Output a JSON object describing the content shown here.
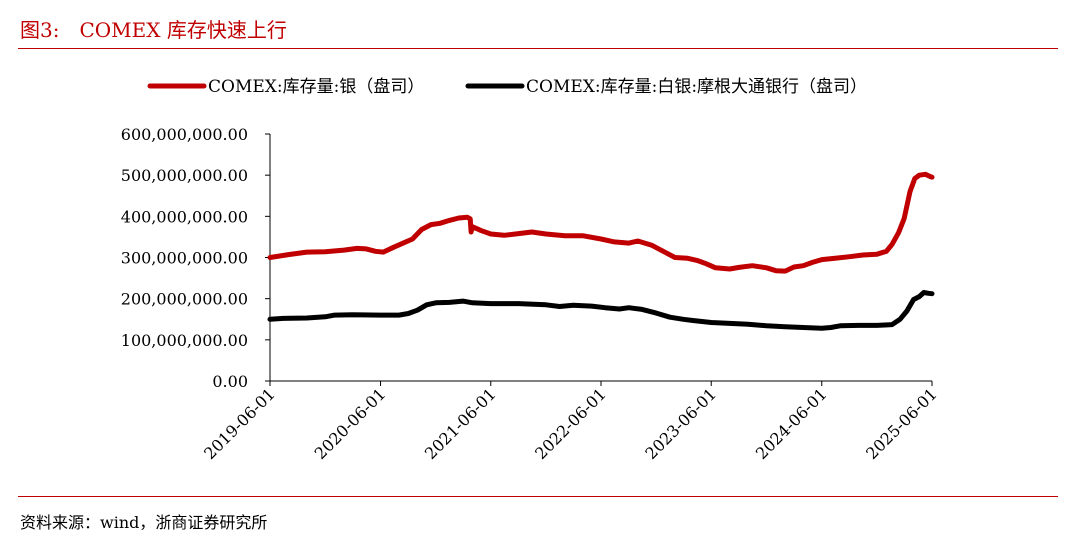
{
  "figure": {
    "title": "图3:　COMEX 库存快速上行",
    "source": "资料来源：wind，浙商证券研究所"
  },
  "chart_data": {
    "type": "line",
    "y_ticks": [
      "0.00",
      "100,000,000.00",
      "200,000,000.00",
      "300,000,000.00",
      "400,000,000.00",
      "500,000,000.00",
      "600,000,000.00"
    ],
    "x_ticks": [
      "2019-06-01",
      "2020-06-01",
      "2021-06-01",
      "2022-06-01",
      "2023-06-01",
      "2024-06-01",
      "2025-06-01"
    ],
    "x_range": [
      "2019-06-01",
      "2025-06-01"
    ],
    "ylim": [
      0,
      600000000
    ],
    "legend_position": "top",
    "grid": false,
    "series": [
      {
        "name": "COMEX:库存量:银（盘司）",
        "color": "#c00000",
        "points": [
          [
            "2019-06-01",
            300000000
          ],
          [
            "2019-08-01",
            307000000
          ],
          [
            "2019-10-01",
            313000000
          ],
          [
            "2019-12-01",
            314000000
          ],
          [
            "2020-02-01",
            318000000
          ],
          [
            "2020-03-15",
            322000000
          ],
          [
            "2020-04-15",
            321000000
          ],
          [
            "2020-05-15",
            315000000
          ],
          [
            "2020-06-10",
            313000000
          ],
          [
            "2020-07-15",
            325000000
          ],
          [
            "2020-08-15",
            335000000
          ],
          [
            "2020-09-15",
            345000000
          ],
          [
            "2020-10-15",
            368000000
          ],
          [
            "2020-11-15",
            380000000
          ],
          [
            "2020-12-15",
            383000000
          ],
          [
            "2021-01-15",
            390000000
          ],
          [
            "2021-02-15",
            396000000
          ],
          [
            "2021-03-15",
            398000000
          ],
          [
            "2021-03-25",
            394000000
          ],
          [
            "2021-03-28",
            362000000
          ],
          [
            "2021-04-01",
            375000000
          ],
          [
            "2021-05-01",
            365000000
          ],
          [
            "2021-06-01",
            357000000
          ],
          [
            "2021-07-15",
            354000000
          ],
          [
            "2021-09-01",
            358000000
          ],
          [
            "2021-10-15",
            362000000
          ],
          [
            "2021-12-01",
            357000000
          ],
          [
            "2022-02-01",
            353000000
          ],
          [
            "2022-04-01",
            353000000
          ],
          [
            "2022-06-01",
            345000000
          ],
          [
            "2022-07-15",
            338000000
          ],
          [
            "2022-09-01",
            335000000
          ],
          [
            "2022-10-01",
            340000000
          ],
          [
            "2022-11-15",
            330000000
          ],
          [
            "2023-01-01",
            312000000
          ],
          [
            "2023-02-01",
            300000000
          ],
          [
            "2023-03-15",
            298000000
          ],
          [
            "2023-04-15",
            293000000
          ],
          [
            "2023-05-15",
            285000000
          ],
          [
            "2023-06-15",
            275000000
          ],
          [
            "2023-08-01",
            272000000
          ],
          [
            "2023-09-01",
            276000000
          ],
          [
            "2023-10-15",
            280000000
          ],
          [
            "2023-12-01",
            275000000
          ],
          [
            "2024-01-01",
            268000000
          ],
          [
            "2024-02-01",
            267000000
          ],
          [
            "2024-03-01",
            277000000
          ],
          [
            "2024-04-01",
            280000000
          ],
          [
            "2024-05-01",
            288000000
          ],
          [
            "2024-06-01",
            295000000
          ],
          [
            "2024-07-15",
            298000000
          ],
          [
            "2024-09-01",
            302000000
          ],
          [
            "2024-10-15",
            306000000
          ],
          [
            "2024-12-01",
            308000000
          ],
          [
            "2025-01-01",
            315000000
          ],
          [
            "2025-01-20",
            332000000
          ],
          [
            "2025-02-10",
            360000000
          ],
          [
            "2025-03-01",
            395000000
          ],
          [
            "2025-03-20",
            460000000
          ],
          [
            "2025-04-05",
            492000000
          ],
          [
            "2025-04-20",
            500000000
          ],
          [
            "2025-05-10",
            502000000
          ],
          [
            "2025-05-25",
            497000000
          ],
          [
            "2025-06-01",
            495000000
          ]
        ]
      },
      {
        "name": "COMEX:库存量:白银:摩根大通银行（盘司）",
        "color": "#000000",
        "points": [
          [
            "2019-06-01",
            150000000
          ],
          [
            "2019-07-15",
            152000000
          ],
          [
            "2019-10-01",
            153000000
          ],
          [
            "2019-12-01",
            156000000
          ],
          [
            "2020-01-01",
            160000000
          ],
          [
            "2020-03-01",
            161000000
          ],
          [
            "2020-06-01",
            160000000
          ],
          [
            "2020-08-01",
            160000000
          ],
          [
            "2020-09-01",
            164000000
          ],
          [
            "2020-10-01",
            172000000
          ],
          [
            "2020-11-01",
            185000000
          ],
          [
            "2020-12-01",
            190000000
          ],
          [
            "2021-01-15",
            191000000
          ],
          [
            "2021-03-01",
            194000000
          ],
          [
            "2021-04-01",
            190000000
          ],
          [
            "2021-06-01",
            188000000
          ],
          [
            "2021-09-01",
            188000000
          ],
          [
            "2021-12-01",
            185000000
          ],
          [
            "2022-01-15",
            181000000
          ],
          [
            "2022-03-01",
            184000000
          ],
          [
            "2022-05-01",
            182000000
          ],
          [
            "2022-06-15",
            178000000
          ],
          [
            "2022-08-01",
            175000000
          ],
          [
            "2022-09-01",
            178000000
          ],
          [
            "2022-10-15",
            174000000
          ],
          [
            "2022-12-01",
            165000000
          ],
          [
            "2023-01-15",
            155000000
          ],
          [
            "2023-03-01",
            150000000
          ],
          [
            "2023-04-01",
            147000000
          ],
          [
            "2023-06-01",
            142000000
          ],
          [
            "2023-08-01",
            140000000
          ],
          [
            "2023-10-01",
            138000000
          ],
          [
            "2023-12-01",
            134000000
          ],
          [
            "2024-02-01",
            132000000
          ],
          [
            "2024-04-01",
            130000000
          ],
          [
            "2024-06-01",
            128000000
          ],
          [
            "2024-07-01",
            130000000
          ],
          [
            "2024-08-01",
            134000000
          ],
          [
            "2024-10-01",
            135000000
          ],
          [
            "2024-12-01",
            135000000
          ],
          [
            "2025-01-20",
            137000000
          ],
          [
            "2025-02-15",
            150000000
          ],
          [
            "2025-03-10",
            170000000
          ],
          [
            "2025-04-01",
            198000000
          ],
          [
            "2025-04-20",
            205000000
          ],
          [
            "2025-05-05",
            215000000
          ],
          [
            "2025-05-20",
            213000000
          ],
          [
            "2025-06-01",
            212000000
          ]
        ]
      }
    ]
  }
}
